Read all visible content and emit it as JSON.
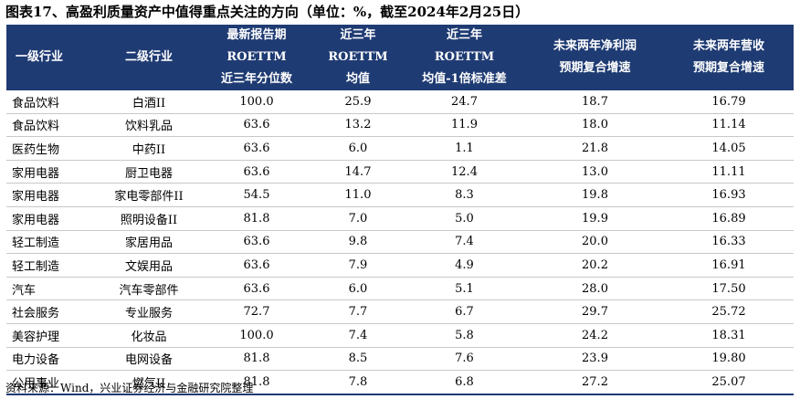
{
  "title": "图表17、高盈利质量资产中值得重点关注的方向（单位：%，截至2024年2月25日）",
  "headers": [
    {
      "lines": [
        "一级行业"
      ]
    },
    {
      "lines": [
        "二级行业"
      ]
    },
    {
      "lines": [
        "最新报告期",
        "ROETTM",
        "近三年分位数"
      ]
    },
    {
      "lines": [
        "近三年",
        "ROETTM",
        "均值"
      ]
    },
    {
      "lines": [
        "近三年",
        "ROETTM",
        "均值-1倍标准差"
      ]
    },
    {
      "lines": [
        "未来两年净利润",
        "预期复合增速"
      ]
    },
    {
      "lines": [
        "未来两年营收",
        "预期复合增速"
      ]
    }
  ],
  "rows": [
    [
      "食品饮料",
      "白酒II",
      "100.0",
      "25.9",
      "24.7",
      "18.7",
      "16.79"
    ],
    [
      "食品饮料",
      "饮料乳品",
      "63.6",
      "13.2",
      "11.9",
      "18.0",
      "11.14"
    ],
    [
      "医药生物",
      "中药II",
      "63.6",
      "6.0",
      "1.1",
      "21.8",
      "14.05"
    ],
    [
      "家用电器",
      "厨卫电器",
      "63.6",
      "14.7",
      "12.4",
      "13.0",
      "11.11"
    ],
    [
      "家用电器",
      "家电零部件II",
      "54.5",
      "11.0",
      "8.3",
      "19.8",
      "16.93"
    ],
    [
      "家用电器",
      "照明设备II",
      "81.8",
      "7.0",
      "5.0",
      "19.9",
      "16.89"
    ],
    [
      "轻工制造",
      "家居用品",
      "63.6",
      "9.8",
      "7.4",
      "20.0",
      "16.33"
    ],
    [
      "轻工制造",
      "文娱用品",
      "63.6",
      "7.9",
      "4.9",
      "20.2",
      "16.91"
    ],
    [
      "汽车",
      "汽车零部件",
      "63.6",
      "6.0",
      "5.1",
      "28.0",
      "17.50"
    ],
    [
      "社会服务",
      "专业服务",
      "72.7",
      "7.7",
      "6.7",
      "29.7",
      "25.72"
    ],
    [
      "美容护理",
      "化妆品",
      "100.0",
      "7.4",
      "5.8",
      "24.2",
      "18.31"
    ],
    [
      "电力设备",
      "电网设备",
      "81.8",
      "8.5",
      "7.6",
      "23.9",
      "19.80"
    ],
    [
      "公用事业",
      "燃气II",
      "81.8",
      "7.8",
      "6.8",
      "27.2",
      "25.07"
    ]
  ],
  "source": "资料来源：Wind，兴业证券经济与金融研究院整理",
  "colors": {
    "header_bg": "#1f3b73",
    "header_text": "#ffffff"
  }
}
